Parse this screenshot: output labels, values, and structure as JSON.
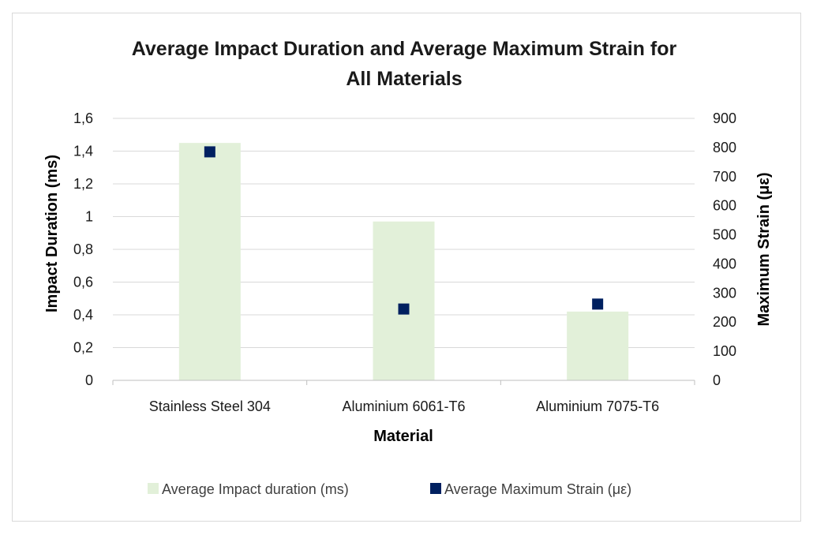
{
  "chart_data": {
    "type": "bar",
    "title_lines": [
      "Average Impact Duration and Average Maximum Strain for",
      "All Materials"
    ],
    "xlabel": "Material",
    "ylabel": "Impact Duration (ms)",
    "y2label": "Maximum Strain (με)",
    "categories": [
      "Stainless Steel 304",
      "Aluminium 6061-T6",
      "Aluminium 7075-T6"
    ],
    "ylim": [
      0,
      1.6
    ],
    "y_ticks": [
      "0",
      "0,2",
      "0,4",
      "0,6",
      "0,8",
      "1",
      "1,2",
      "1,4",
      "1,6"
    ],
    "y2lim": [
      0,
      900
    ],
    "y2_ticks": [
      "0",
      "100",
      "200",
      "300",
      "400",
      "500",
      "600",
      "700",
      "800",
      "900"
    ],
    "grid": true,
    "legend_position": "bottom",
    "series": [
      {
        "name": "Average Impact duration (ms)",
        "kind": "bar",
        "axis": "left",
        "values": [
          1.45,
          0.97,
          0.42
        ],
        "color": "#e2f0d9"
      },
      {
        "name": "Average Maximum Strain (με)",
        "kind": "marker",
        "axis": "right",
        "values": [
          785,
          245,
          262
        ],
        "color": "#002060"
      }
    ]
  }
}
